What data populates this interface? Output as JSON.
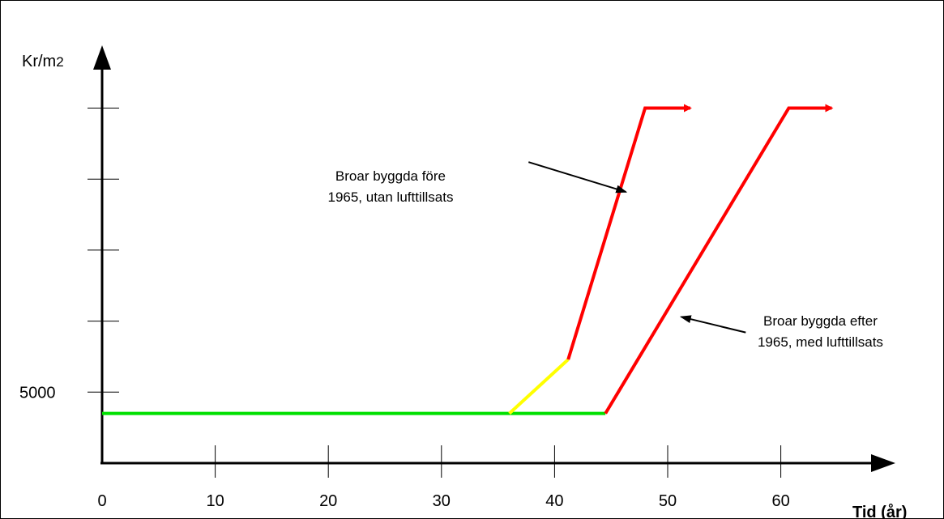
{
  "chart_data": {
    "type": "line",
    "xlabel": "Tid (år)",
    "ylabel_main": "Kr/m",
    "ylabel_sub": "2",
    "x_ticks": [
      0,
      10,
      20,
      30,
      40,
      50,
      60
    ],
    "x_tick_labels": [
      "0",
      "10",
      "20",
      "30",
      "40",
      "50",
      "60"
    ],
    "y_labeled_tick": {
      "value": 5000,
      "label": "5000"
    },
    "y_unlabeled_ticks": [
      10000,
      15000,
      20000,
      25000
    ],
    "xlim": [
      0,
      70
    ],
    "ylim": [
      0,
      27500
    ],
    "series": [
      {
        "segments": [
          {
            "color": "#00e000",
            "points": [
              [
                0,
                3500
              ],
              [
                44.5,
                3500
              ]
            ]
          },
          {
            "color": "#ffff00",
            "points": [
              [
                36,
                3500
              ],
              [
                41.2,
                7300
              ]
            ]
          },
          {
            "color": "#ff0000",
            "points": [
              [
                41.2,
                7300
              ],
              [
                48,
                25000
              ],
              [
                52,
                25000
              ]
            ],
            "arrow": true
          }
        ]
      },
      {
        "segments": [
          {
            "color": "#ff0000",
            "points": [
              [
                44.5,
                3500
              ],
              [
                60.7,
                25000
              ],
              [
                64.5,
                25000
              ]
            ],
            "arrow": true
          }
        ]
      }
    ],
    "annotations": [
      {
        "lines": [
          "Broar byggda före",
          "1965, utan lufttillsats"
        ],
        "text_at": [
          25.5,
          19900
        ],
        "arrow_from": [
          37.7,
          21200
        ],
        "arrow_to": [
          46.3,
          19100
        ]
      },
      {
        "lines": [
          "Broar byggda efter",
          "1965, med lufttillsats"
        ],
        "text_at": [
          63.5,
          9700
        ],
        "arrow_from": [
          56.9,
          9200
        ],
        "arrow_to": [
          51.2,
          10300
        ]
      }
    ]
  }
}
